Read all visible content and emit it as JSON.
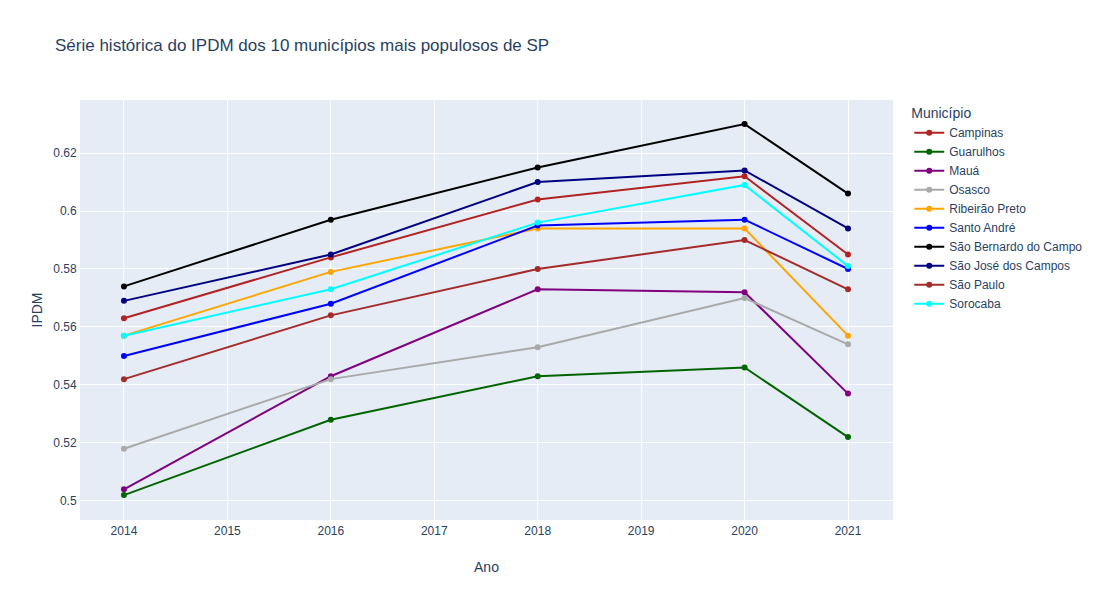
{
  "chart_data": {
    "type": "line",
    "title": "Série histórica do IPDM dos 10 municípios mais populosos de SP",
    "x_label": "Ano",
    "y_label": "IPDM",
    "legend_title": "Município",
    "x": [
      2014,
      2016,
      2018,
      2020,
      2021
    ],
    "series": [
      {
        "name": "Campinas",
        "color": "#b22222",
        "values": [
          0.563,
          0.584,
          0.604,
          0.612,
          0.585
        ]
      },
      {
        "name": "Guarulhos",
        "color": "#006400",
        "values": [
          0.502,
          0.528,
          0.543,
          0.546,
          0.522
        ]
      },
      {
        "name": "Mauá",
        "color": "#800080",
        "values": [
          0.504,
          0.543,
          0.573,
          0.572,
          0.537
        ]
      },
      {
        "name": "Osasco",
        "color": "#a9a9a9",
        "values": [
          0.518,
          0.542,
          0.553,
          0.57,
          0.554
        ]
      },
      {
        "name": "Ribeirão Preto",
        "color": "#ffa500",
        "values": [
          0.557,
          0.579,
          0.594,
          0.594,
          0.557
        ]
      },
      {
        "name": "Santo André",
        "color": "#0000ff",
        "values": [
          0.55,
          0.568,
          0.595,
          0.597,
          0.58
        ]
      },
      {
        "name": "São Bernardo do Campo",
        "color": "#000000",
        "values": [
          0.574,
          0.597,
          0.615,
          0.63,
          0.606
        ]
      },
      {
        "name": "São José dos Campos",
        "color": "#000080",
        "values": [
          0.569,
          0.585,
          0.61,
          0.614,
          0.594
        ]
      },
      {
        "name": "São Paulo",
        "color": "#a52a2a",
        "values": [
          0.542,
          0.564,
          0.58,
          0.59,
          0.573
        ]
      },
      {
        "name": "Sorocaba",
        "color": "#00ffff",
        "values": [
          0.557,
          0.573,
          0.596,
          0.609,
          0.581
        ]
      }
    ],
    "xlim": [
      2013.575,
      2021.435
    ],
    "xticks": [
      2014,
      2015,
      2016,
      2017,
      2018,
      2019,
      2020,
      2021
    ],
    "ylim": [
      0.4934,
      0.6383
    ],
    "yticks": [
      0.5,
      0.52,
      0.54,
      0.56,
      0.58,
      0.6,
      0.62
    ],
    "grid": true,
    "legend": "right",
    "marker": "circle",
    "line_style": "solid"
  }
}
